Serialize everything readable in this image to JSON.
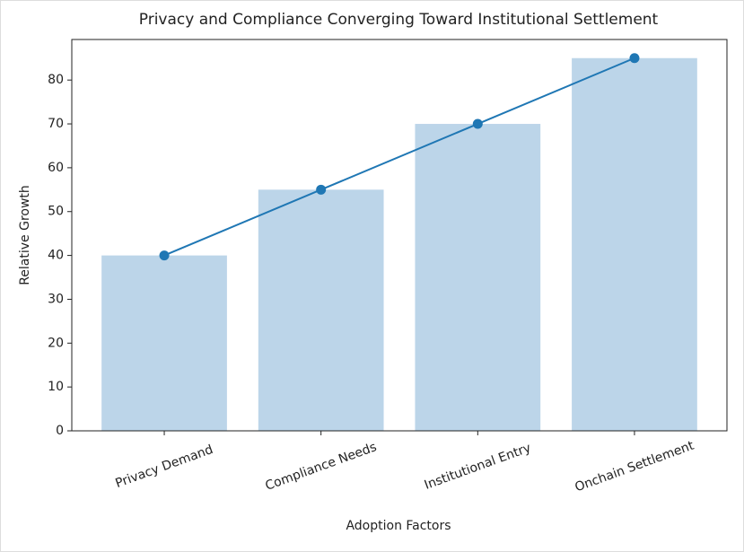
{
  "chart_data": {
    "type": "bar",
    "title": "Privacy and Compliance Converging Toward Institutional Settlement",
    "x_label": "Adoption Factors",
    "y_label": "Relative Growth",
    "categories": [
      "Privacy Demand",
      "Compliance Needs",
      "Institutional Entry",
      "Onchain Settlement"
    ],
    "series": [
      {
        "type": "bar",
        "color": "#bcd5e9",
        "values": [
          40,
          55,
          70,
          85
        ]
      },
      {
        "type": "line",
        "color": "#1f77b4",
        "values": [
          40,
          55,
          70,
          85
        ]
      }
    ],
    "ylim": [
      0,
      89.25
    ],
    "yticks": [
      0,
      10,
      20,
      30,
      40,
      50,
      60,
      70,
      80
    ],
    "grid": false
  }
}
